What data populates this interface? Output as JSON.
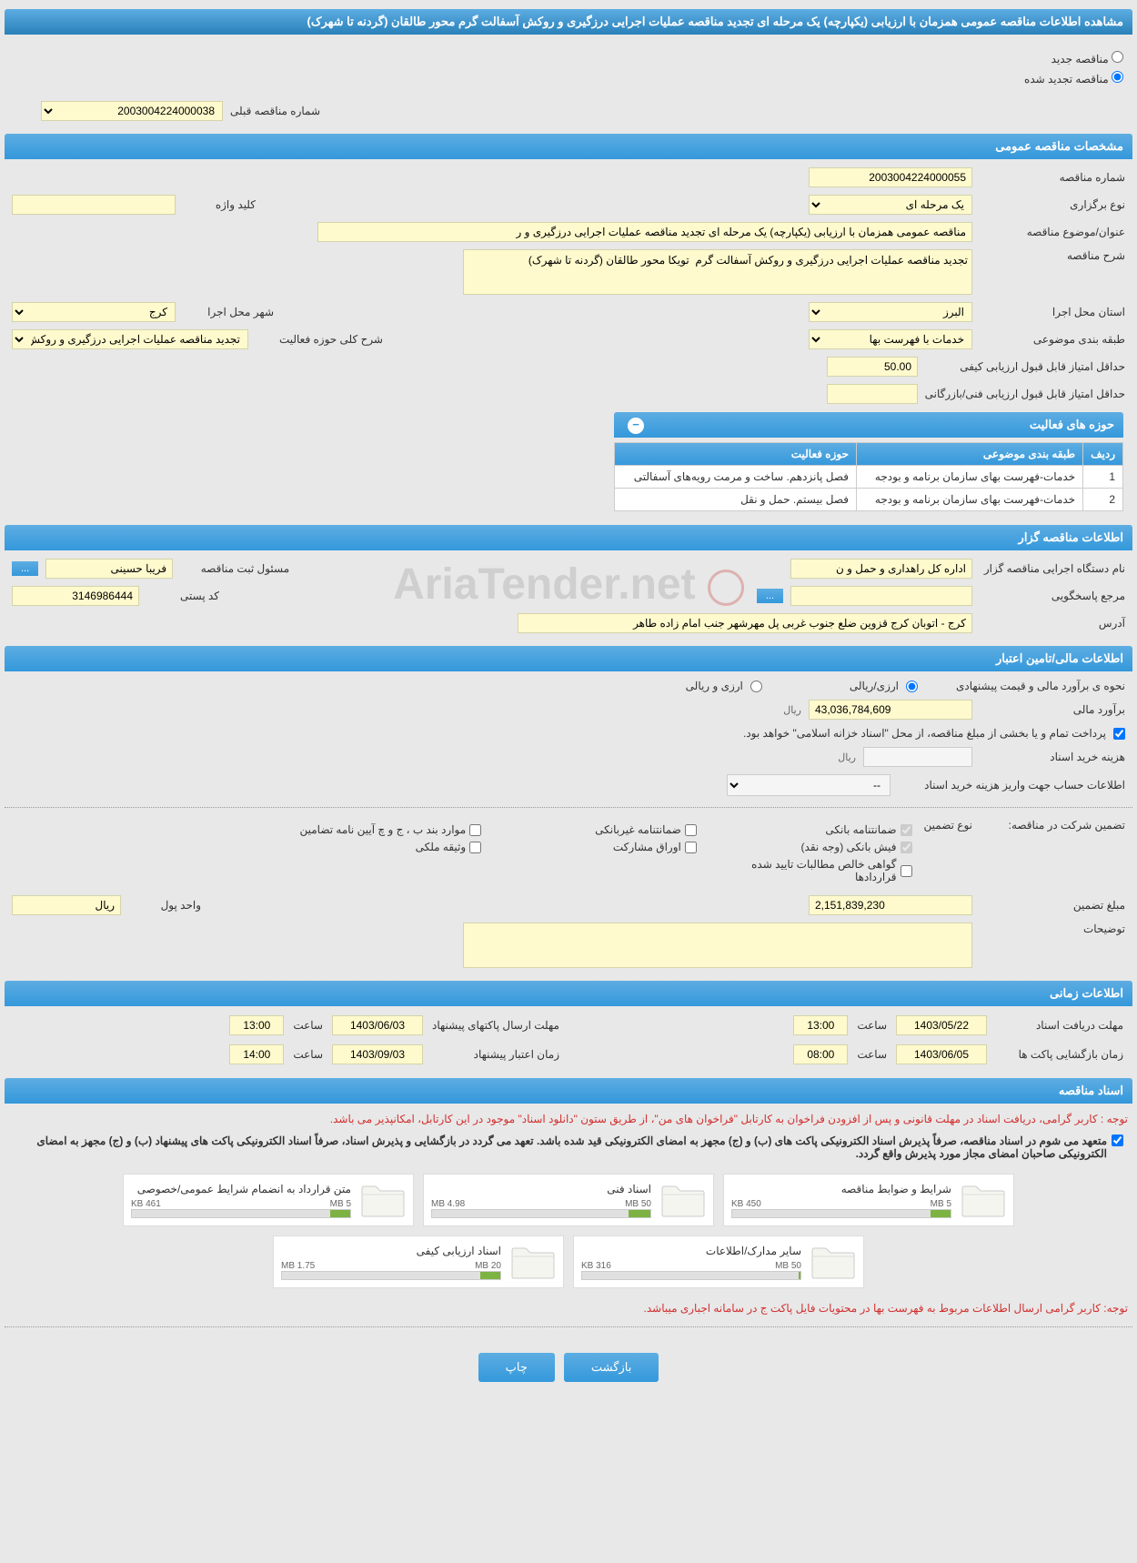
{
  "page_title": "مشاهده اطلاعات مناقصه عمومی همزمان با ارزیابی (یکپارچه) یک مرحله ای تجدید مناقصه عملیات اجرایی درزگیری و روکش آسفالت گرم محور طالقان (گردنه تا شهرک)",
  "radio_options": {
    "new": "مناقصه جدید",
    "renewed": "مناقصه تجدید شده"
  },
  "prev_tender_label": "شماره مناقصه قبلی",
  "prev_tender_number": "2003004224000038",
  "section_general": "مشخصات مناقصه عمومی",
  "general": {
    "tender_number_label": "شماره مناقصه",
    "tender_number": "2003004224000055",
    "holding_type_label": "نوع برگزاری",
    "holding_type": "یک مرحله ای",
    "keyword_label": "کلید واژه",
    "keyword": "",
    "subject_label": "عنوان/موضوع مناقصه",
    "subject": "مناقصه عمومی همزمان با ارزیابی (یکپارچه) یک مرحله ای تجدید مناقصه عملیات اجرایی درزگیری و ر",
    "desc_label": "شرح مناقصه",
    "desc": "تجدید مناقصه عملیات اجرایی درزگیری و روکش آسفالت گرم  تویکا محور طالقان (گردنه تا شهرک)",
    "province_label": "استان محل اجرا",
    "province": "البرز",
    "city_label": "شهر محل اجرا",
    "city": "کرج",
    "category_label": "طبقه بندی موضوعی",
    "category": "خدمات با فهرست بها",
    "activity_desc_label": "شرح کلی حوزه فعالیت",
    "activity_desc": "تجدید مناقصه عملیات اجرایی درزگیری و روکش",
    "min_quality_score_label": "حداقل امتیاز قابل قبول ارزیابی کیفی",
    "min_quality_score": "50.00",
    "min_tech_score_label": "حداقل امتیاز قابل قبول ارزیابی فنی/بازرگانی",
    "min_tech_score": ""
  },
  "activities_table": {
    "title": "حوزه های فعالیت",
    "cols": [
      "ردیف",
      "طبقه بندی موضوعی",
      "حوزه فعالیت"
    ],
    "rows": [
      [
        "1",
        "خدمات-فهرست بهای سازمان برنامه و بودجه",
        "فصل پانزدهم. ساخت و مرمت رویه‌های آسفالتی"
      ],
      [
        "2",
        "خدمات-فهرست بهای سازمان برنامه و بودجه",
        "فصل بیستم. حمل و نقل"
      ]
    ]
  },
  "section_org": "اطلاعات مناقصه گزار",
  "org": {
    "org_name_label": "نام دستگاه اجرایی مناقصه گزار",
    "org_name": "اداره کل راهداری و حمل و ن",
    "responsible_label": "مسئول ثبت مناقصه",
    "responsible": "فریبا حسینی",
    "response_ref_label": "مرجع پاسخگویی",
    "response_ref": "",
    "postal_label": "کد پستی",
    "postal": "3146986444",
    "address_label": "آدرس",
    "address": "کرج - اتوبان کرج قزوین ضلع جنوب غربی پل مهرشهر جنب امام زاده طاهر"
  },
  "section_financial": "اطلاعات مالی/تامین اعتبار",
  "financial": {
    "estimate_type_label": "نحوه ی برآورد مالی و قیمت پیشنهادی",
    "currency_rial": "ارزی/ریالی",
    "currency_foreign": "ارزی و ریالی",
    "estimate_label": "برآورد مالی",
    "estimate": "43,036,784,609",
    "unit_rial": "ریال",
    "treasury_note": "پرداخت تمام و یا بخشی از مبلغ مناقصه، از محل \"اسناد خزانه اسلامی\" خواهد بود.",
    "doc_cost_label": "هزینه خرید اسناد",
    "doc_cost": "",
    "doc_cost_unit": "ریال",
    "account_label": "اطلاعات حساب جهت واریز هزینه خرید اسناد",
    "account": "--",
    "guarantee_label": "تضمین شرکت در مناقصه:",
    "guarantee_type_label": "نوع تضمین",
    "guarantees": {
      "bank": "ضمانتنامه بانکی",
      "nonbank": "ضمانتنامه غیربانکی",
      "items_b_j_ch": "موارد بند ب ، ج و چ آیین نامه تضامین",
      "cash": "فیش بانکی (وجه نقد)",
      "participation": "اوراق مشارکت",
      "property": "وثیقه ملکی",
      "claims": "گواهی خالص مطالبات تایید شده قراردادها"
    },
    "guarantee_amount_label": "مبلغ تضمین",
    "guarantee_amount": "2,151,839,230",
    "money_unit_label": "واحد پول",
    "money_unit": "ریال",
    "notes_label": "توضیحات",
    "notes": ""
  },
  "section_time": "اطلاعات زمانی",
  "times": {
    "doc_receive_label": "مهلت دریافت اسناد",
    "doc_receive_date": "1403/05/22",
    "doc_receive_time_label": "ساعت",
    "doc_receive_time": "13:00",
    "envelope_send_label": "مهلت ارسال پاکتهای پیشنهاد",
    "envelope_send_date": "1403/06/03",
    "envelope_send_time_label": "ساعت",
    "envelope_send_time": "13:00",
    "open_label": "زمان بازگشایی پاکت ها",
    "open_date": "1403/06/05",
    "open_time_label": "ساعت",
    "open_time": "08:00",
    "validity_label": "زمان اعتبار پیشنهاد",
    "validity_date": "1403/09/03",
    "validity_time_label": "ساعت",
    "validity_time": "14:00"
  },
  "section_docs": "اسناد مناقصه",
  "docs": {
    "notice1": "توجه : کاربر گرامی، دریافت اسناد در مهلت قانونی و پس از افزودن فراخوان به کارتابل \"فراخوان های من\"، از طریق ستون \"دانلود اسناد\" موجود در این کارتابل، امکانپذیر می باشد.",
    "commitment": "متعهد می شوم در اسناد مناقصه، صرفاً پذیرش اسناد الکترونیکی پاکت های (ب) و (ج) مجهز به امضای الکترونیکی قید شده باشد. تعهد می گردد در بازگشایی و پذیرش اسناد، صرفاً اسناد الکترونیکی پاکت های پیشنهاد (ب) و (ج) مجهز به امضای الکترونیکی صاحبان امضای مجاز مورد پذیرش واقع گردد.",
    "files": [
      {
        "title": "شرایط و ضوابط مناقصه",
        "used": "450 KB",
        "total": "5 MB",
        "pct": 9
      },
      {
        "title": "اسناد فنی",
        "used": "4.98 MB",
        "total": "50 MB",
        "pct": 10
      },
      {
        "title": "متن قرارداد به انضمام شرایط عمومی/خصوصی",
        "used": "461 KB",
        "total": "5 MB",
        "pct": 9
      },
      {
        "title": "سایر مدارک/اطلاعات",
        "used": "316 KB",
        "total": "50 MB",
        "pct": 1
      },
      {
        "title": "اسناد ارزیابی کیفی",
        "used": "1.75 MB",
        "total": "20 MB",
        "pct": 9
      }
    ],
    "notice2": "توجه: کاربر گرامی ارسال اطلاعات مربوط به فهرست بها در محتویات فایل پاکت ج در سامانه اجباری میباشد."
  },
  "buttons": {
    "back": "بازگشت",
    "print": "چاپ",
    "more": "..."
  },
  "watermark": "AriaTender.net"
}
